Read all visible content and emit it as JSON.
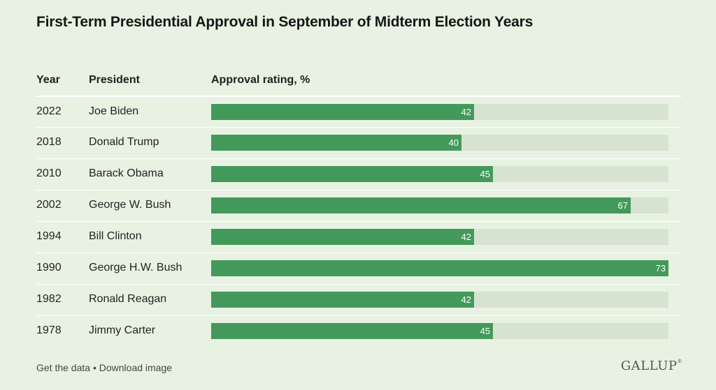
{
  "title": "First-Term Presidential Approval in September of Midterm Election Years",
  "headers": {
    "year": "Year",
    "president": "President",
    "approval": "Approval rating, %"
  },
  "footer": {
    "get_data": "Get the data",
    "separator": " • ",
    "download": "Download image"
  },
  "logo": "GALLUP",
  "colors": {
    "bar": "#43995a",
    "track": "#d6e3d1",
    "background": "#e8f2e3"
  },
  "chart_data": {
    "type": "bar",
    "orientation": "horizontal",
    "title": "First-Term Presidential Approval in September of Midterm Election Years",
    "xlabel": "Approval rating, %",
    "xlim": [
      0,
      73
    ],
    "categories": [
      "2022",
      "2018",
      "2010",
      "2002",
      "1994",
      "1990",
      "1982",
      "1978"
    ],
    "presidents": [
      "Joe Biden",
      "Donald Trump",
      "Barack Obama",
      "George W. Bush",
      "Bill Clinton",
      "George H.W. Bush",
      "Ronald Reagan",
      "Jimmy Carter"
    ],
    "values": [
      42,
      40,
      45,
      67,
      42,
      73,
      42,
      45
    ],
    "grid": false,
    "legend": "none"
  }
}
